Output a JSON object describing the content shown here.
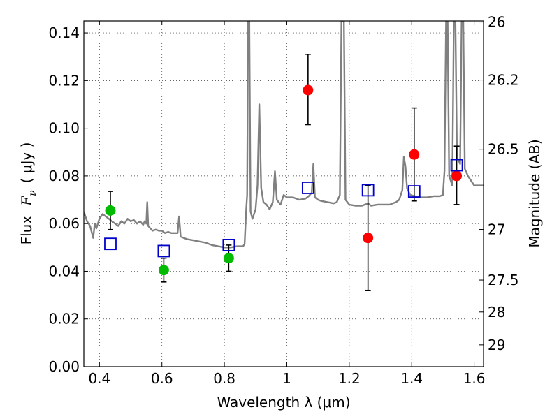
{
  "chart_data": {
    "type": "scatter",
    "title": "",
    "xlabel": "Wavelength  λ (μm)",
    "ylabel": "Flux  F_ν  ( μJy )",
    "ylabel_parts": {
      "prefix": "Flux",
      "symbol": "F",
      "subscript": "ν",
      "unit": "( μJy )"
    },
    "y2label": "Magnitude (AB)",
    "xlim": [
      0.35,
      1.63
    ],
    "ylim": [
      0.0,
      0.145
    ],
    "grid": true,
    "x_ticks": [
      0.4,
      0.6,
      0.8,
      1.0,
      1.2,
      1.4,
      1.6
    ],
    "x_tick_labels": [
      "0.4",
      "0.6",
      "0.8",
      "1",
      "1.2",
      "1.4",
      "1.6"
    ],
    "y_ticks": [
      0.0,
      0.02,
      0.04,
      0.06,
      0.08,
      0.1,
      0.12,
      0.14
    ],
    "y_tick_labels": [
      "0.00",
      "0.02",
      "0.04",
      "0.06",
      "0.08",
      "0.10",
      "0.12",
      "0.14"
    ],
    "y2_ticks": [
      {
        "label": "26",
        "mag": 26.0
      },
      {
        "label": "26.2",
        "mag": 26.2
      },
      {
        "label": "26.5",
        "mag": 26.5
      },
      {
        "label": "27",
        "mag": 27.0
      },
      {
        "label": "27.5",
        "mag": 27.5
      },
      {
        "label": "28",
        "mag": 28.0
      },
      {
        "label": "29",
        "mag": 29.0
      }
    ],
    "series": [
      {
        "marker": "circle",
        "color": "#00bb00",
        "points": [
          {
            "x": 0.435,
            "y": 0.0655,
            "yerr_low": 0.0575,
            "yerr_high": 0.0735
          },
          {
            "x": 0.606,
            "y": 0.0405,
            "yerr_low": 0.0355,
            "yerr_high": 0.0455
          },
          {
            "x": 0.814,
            "y": 0.0455,
            "yerr_low": 0.04,
            "yerr_high": 0.051
          }
        ]
      },
      {
        "marker": "circle",
        "color": "#ff0000",
        "points": [
          {
            "x": 1.068,
            "y": 0.116,
            "yerr_low": 0.1015,
            "yerr_high": 0.131
          },
          {
            "x": 1.26,
            "y": 0.054,
            "yerr_low": 0.032,
            "yerr_high": 0.076
          },
          {
            "x": 1.408,
            "y": 0.089,
            "yerr_low": 0.0695,
            "yerr_high": 0.1085
          },
          {
            "x": 1.544,
            "y": 0.08,
            "yerr_low": 0.068,
            "yerr_high": 0.0925
          }
        ]
      },
      {
        "marker": "square-open",
        "color": "#0000cc",
        "points": [
          {
            "x": 0.435,
            "y": 0.0515
          },
          {
            "x": 0.606,
            "y": 0.0485
          },
          {
            "x": 0.814,
            "y": 0.051
          },
          {
            "x": 1.068,
            "y": 0.075
          },
          {
            "x": 1.26,
            "y": 0.074
          },
          {
            "x": 1.408,
            "y": 0.0735
          },
          {
            "x": 1.544,
            "y": 0.0845
          }
        ]
      },
      {
        "marker": "line",
        "color": "#808080",
        "points": [
          [
            0.35,
            0.065
          ],
          [
            0.36,
            0.061
          ],
          [
            0.37,
            0.059
          ],
          [
            0.38,
            0.054
          ],
          [
            0.385,
            0.06
          ],
          [
            0.39,
            0.058
          ],
          [
            0.4,
            0.062
          ],
          [
            0.41,
            0.064
          ],
          [
            0.42,
            0.063
          ],
          [
            0.43,
            0.062
          ],
          [
            0.44,
            0.061
          ],
          [
            0.45,
            0.06
          ],
          [
            0.46,
            0.059
          ],
          [
            0.47,
            0.061
          ],
          [
            0.48,
            0.06
          ],
          [
            0.49,
            0.062
          ],
          [
            0.5,
            0.061
          ],
          [
            0.51,
            0.0615
          ],
          [
            0.52,
            0.06
          ],
          [
            0.53,
            0.061
          ],
          [
            0.54,
            0.0595
          ],
          [
            0.545,
            0.061
          ],
          [
            0.55,
            0.06
          ],
          [
            0.553,
            0.069
          ],
          [
            0.556,
            0.059
          ],
          [
            0.57,
            0.057
          ],
          [
            0.58,
            0.0575
          ],
          [
            0.59,
            0.057
          ],
          [
            0.6,
            0.057
          ],
          [
            0.61,
            0.056
          ],
          [
            0.62,
            0.0565
          ],
          [
            0.63,
            0.056
          ],
          [
            0.64,
            0.056
          ],
          [
            0.65,
            0.056
          ],
          [
            0.655,
            0.063
          ],
          [
            0.66,
            0.0545
          ],
          [
            0.67,
            0.054
          ],
          [
            0.68,
            0.0535
          ],
          [
            0.7,
            0.053
          ],
          [
            0.72,
            0.0525
          ],
          [
            0.74,
            0.052
          ],
          [
            0.76,
            0.051
          ],
          [
            0.78,
            0.0505
          ],
          [
            0.8,
            0.05
          ],
          [
            0.82,
            0.05
          ],
          [
            0.84,
            0.0505
          ],
          [
            0.86,
            0.0505
          ],
          [
            0.865,
            0.0515
          ],
          [
            0.87,
            0.066
          ],
          [
            0.873,
            0.072
          ],
          [
            0.876,
            0.145
          ],
          [
            0.88,
            0.145
          ],
          [
            0.884,
            0.065
          ],
          [
            0.89,
            0.062
          ],
          [
            0.9,
            0.066
          ],
          [
            0.906,
            0.076
          ],
          [
            0.912,
            0.11
          ],
          [
            0.918,
            0.075
          ],
          [
            0.925,
            0.069
          ],
          [
            0.935,
            0.068
          ],
          [
            0.945,
            0.066
          ],
          [
            0.955,
            0.069
          ],
          [
            0.962,
            0.082
          ],
          [
            0.968,
            0.07
          ],
          [
            0.98,
            0.068
          ],
          [
            0.99,
            0.072
          ],
          [
            1.0,
            0.071
          ],
          [
            1.02,
            0.071
          ],
          [
            1.04,
            0.07
          ],
          [
            1.06,
            0.0705
          ],
          [
            1.07,
            0.0715
          ],
          [
            1.08,
            0.073
          ],
          [
            1.085,
            0.085
          ],
          [
            1.09,
            0.071
          ],
          [
            1.1,
            0.07
          ],
          [
            1.11,
            0.0695
          ],
          [
            1.13,
            0.069
          ],
          [
            1.15,
            0.0685
          ],
          [
            1.16,
            0.069
          ],
          [
            1.17,
            0.072
          ],
          [
            1.175,
            0.145
          ],
          [
            1.183,
            0.145
          ],
          [
            1.188,
            0.07
          ],
          [
            1.2,
            0.068
          ],
          [
            1.22,
            0.0675
          ],
          [
            1.24,
            0.0675
          ],
          [
            1.26,
            0.0685
          ],
          [
            1.27,
            0.0675
          ],
          [
            1.29,
            0.068
          ],
          [
            1.31,
            0.068
          ],
          [
            1.33,
            0.068
          ],
          [
            1.35,
            0.069
          ],
          [
            1.36,
            0.07
          ],
          [
            1.37,
            0.074
          ],
          [
            1.375,
            0.088
          ],
          [
            1.38,
            0.084
          ],
          [
            1.385,
            0.075
          ],
          [
            1.395,
            0.072
          ],
          [
            1.41,
            0.0715
          ],
          [
            1.43,
            0.071
          ],
          [
            1.45,
            0.071
          ],
          [
            1.47,
            0.0715
          ],
          [
            1.49,
            0.0715
          ],
          [
            1.5,
            0.072
          ],
          [
            1.505,
            0.082
          ],
          [
            1.51,
            0.145
          ],
          [
            1.515,
            0.145
          ],
          [
            1.52,
            0.08
          ],
          [
            1.53,
            0.076
          ],
          [
            1.535,
            0.145
          ],
          [
            1.54,
            0.145
          ],
          [
            1.545,
            0.088
          ],
          [
            1.555,
            0.085
          ],
          [
            1.56,
            0.145
          ],
          [
            1.565,
            0.145
          ],
          [
            1.57,
            0.083
          ],
          [
            1.58,
            0.08
          ],
          [
            1.59,
            0.078
          ],
          [
            1.6,
            0.076
          ],
          [
            1.63,
            0.076
          ]
        ]
      }
    ]
  }
}
